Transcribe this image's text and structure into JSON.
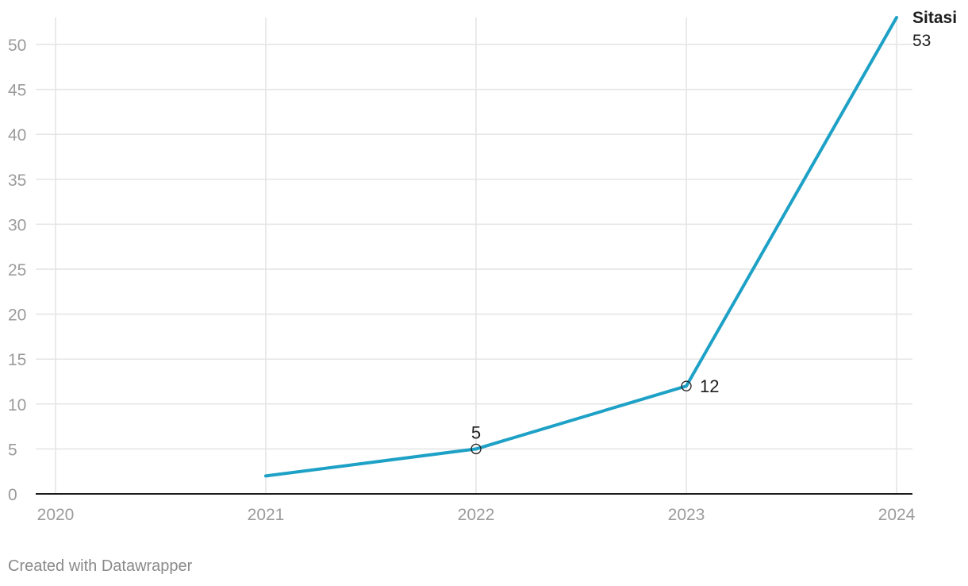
{
  "chart_data": {
    "type": "line",
    "x": [
      "2020",
      "2021",
      "2022",
      "2023",
      "2024"
    ],
    "x_ticks": [
      "2020",
      "2021",
      "2022",
      "2023",
      "2024"
    ],
    "ylim": [
      0,
      55
    ],
    "y_ticks": [
      0,
      5,
      10,
      15,
      20,
      25,
      30,
      35,
      40,
      45,
      50
    ],
    "grid": true,
    "series": [
      {
        "name": "Sitasi",
        "color": "#1ea1c6",
        "points": [
          {
            "x": "2021",
            "y": 2
          },
          {
            "x": "2022",
            "y": 5
          },
          {
            "x": "2023",
            "y": 12
          },
          {
            "x": "2024",
            "y": 53
          }
        ]
      }
    ],
    "annotations": [
      {
        "x": "2022",
        "y": 5,
        "text": "5"
      },
      {
        "x": "2023",
        "y": 12,
        "text": "12"
      }
    ],
    "end_label": {
      "series": "Sitasi",
      "value": "53"
    }
  },
  "footer": "Created with Datawrapper"
}
